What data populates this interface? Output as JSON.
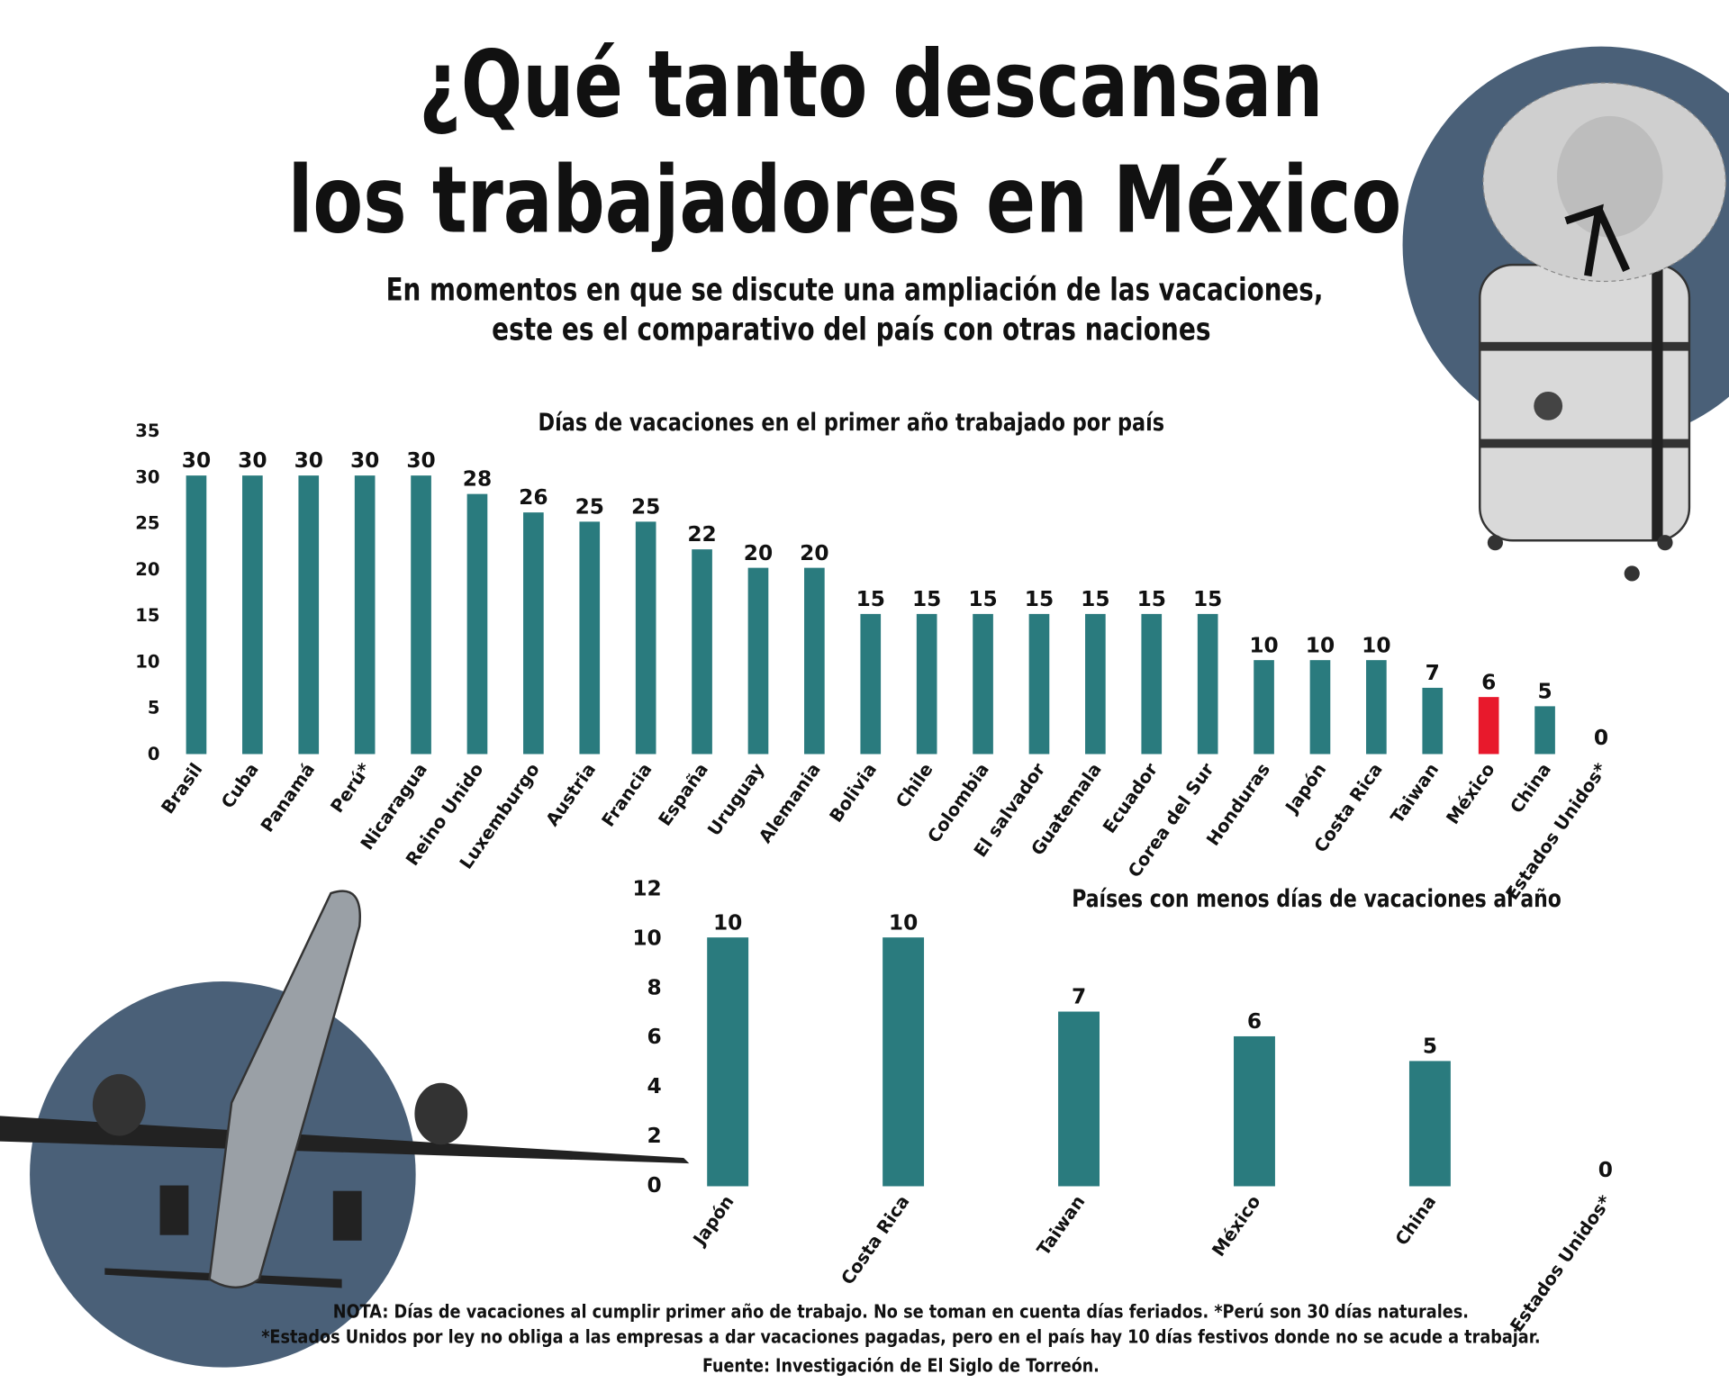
{
  "title": [
    "¿Qué tanto descansan",
    "los trabajadores en México"
  ],
  "subtitle": [
    "En momentos en que se discute una ampliación de las vacaciones,",
    "este es el comparativo del país con otras naciones"
  ],
  "notes": [
    "NOTA: Días de vacaciones al cumplir primer año de trabajo. No se toman en cuenta días feriados. *Perú son 30 días naturales.",
    "*Estados Unidos por ley no obliga a las empresas a dar vacaciones pagadas, pero en el país hay 10 días festivos donde no se acude a trabajar.",
    "Fuente: Investigación de El Siglo de Torreón."
  ],
  "chart_data": [
    {
      "type": "bar",
      "title": "Días de vacaciones en el primer año trabajado por país",
      "categories": [
        "Brasil",
        "Cuba",
        "Panamá",
        "Perú*",
        "Nicaragua",
        "Reino Unido",
        "Luxemburgo",
        "Austria",
        "Francia",
        "España",
        "Uruguay",
        "Alemania",
        "Bolivia",
        "Chile",
        "Colombia",
        "El salvador",
        "Guatemala",
        "Ecuador",
        "Corea del Sur",
        "Honduras",
        "Japón",
        "Costa Rica",
        "Taiwan",
        "México",
        "China",
        "Estados Unidos*"
      ],
      "values": [
        30,
        30,
        30,
        30,
        30,
        28,
        26,
        25,
        25,
        22,
        20,
        20,
        15,
        15,
        15,
        15,
        15,
        15,
        15,
        10,
        10,
        10,
        7,
        6,
        5,
        0
      ],
      "colors": [
        "#2a7b7e",
        "#2a7b7e",
        "#2a7b7e",
        "#2a7b7e",
        "#2a7b7e",
        "#2a7b7e",
        "#2a7b7e",
        "#2a7b7e",
        "#2a7b7e",
        "#2a7b7e",
        "#2a7b7e",
        "#2a7b7e",
        "#2a7b7e",
        "#2a7b7e",
        "#2a7b7e",
        "#2a7b7e",
        "#2a7b7e",
        "#2a7b7e",
        "#2a7b7e",
        "#2a7b7e",
        "#2a7b7e",
        "#2a7b7e",
        "#2a7b7e",
        "#e8192c",
        "#2a7b7e",
        "#2a7b7e"
      ],
      "ylim": [
        0,
        35
      ],
      "yticks": [
        0,
        5,
        10,
        15,
        20,
        25,
        30,
        35
      ],
      "grid": false
    },
    {
      "type": "bar",
      "title": "Países con menos días de vacaciones al año",
      "categories": [
        "Japón",
        "Costa Rica",
        "Taiwan",
        "México",
        "China",
        "Estados Unidos*"
      ],
      "values": [
        10,
        10,
        7,
        6,
        5,
        0
      ],
      "colors": [
        "#2a7b7e",
        "#2a7b7e",
        "#2a7b7e",
        "#2a7b7e",
        "#2a7b7e",
        "#2a7b7e"
      ],
      "ylim": [
        0,
        12
      ],
      "yticks": [
        0,
        2,
        4,
        6,
        8,
        10,
        12
      ],
      "grid": false
    }
  ]
}
